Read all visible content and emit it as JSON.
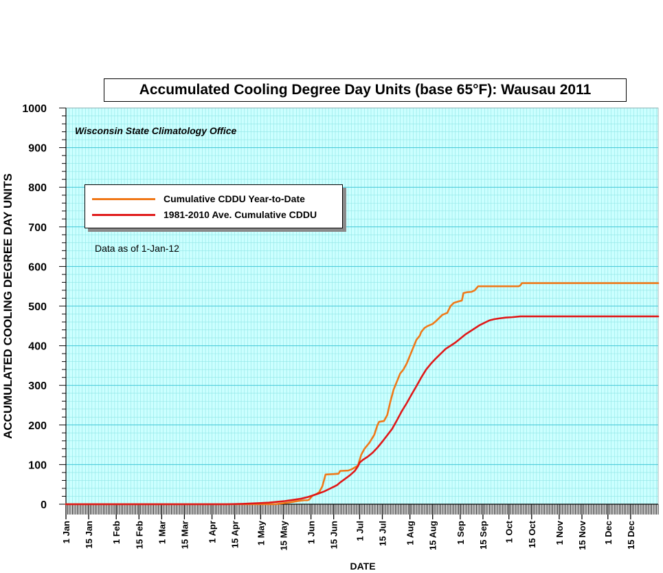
{
  "chart_data": {
    "type": "line",
    "title": "Accumulated Cooling Degree Day Units (base 65°F): Wausau 2011",
    "subtitle": "Wisconsin State Climatology Office",
    "annotation": "Data as of 1-Jan-12",
    "xlabel": "DATE",
    "ylabel": "ACCUMULATED COOLING DEGREE DAY UNITS",
    "ylim": [
      0,
      1000
    ],
    "xlim": [
      1,
      366
    ],
    "yticks": [
      0,
      100,
      200,
      300,
      400,
      500,
      600,
      700,
      800,
      900,
      1000
    ],
    "xticks": [
      {
        "day": 1,
        "label": "1 Jan"
      },
      {
        "day": 15,
        "label": "15 Jan"
      },
      {
        "day": 32,
        "label": "1 Feb"
      },
      {
        "day": 46,
        "label": "15 Feb"
      },
      {
        "day": 60,
        "label": "1 Mar"
      },
      {
        "day": 74,
        "label": "15 Mar"
      },
      {
        "day": 91,
        "label": "1 Apr"
      },
      {
        "day": 105,
        "label": "15 Apr"
      },
      {
        "day": 121,
        "label": "1 May"
      },
      {
        "day": 135,
        "label": "15 May"
      },
      {
        "day": 152,
        "label": "1 Jun"
      },
      {
        "day": 166,
        "label": "15 Jun"
      },
      {
        "day": 182,
        "label": "1 Jul"
      },
      {
        "day": 196,
        "label": "15 Jul"
      },
      {
        "day": 213,
        "label": "1 Aug"
      },
      {
        "day": 227,
        "label": "15 Aug"
      },
      {
        "day": 244,
        "label": "1 Sep"
      },
      {
        "day": 258,
        "label": "15 Sep"
      },
      {
        "day": 274,
        "label": "1 Oct"
      },
      {
        "day": 288,
        "label": "15 Oct"
      },
      {
        "day": 305,
        "label": "1 Nov"
      },
      {
        "day": 319,
        "label": "15 Nov"
      },
      {
        "day": 335,
        "label": "1 Dec"
      },
      {
        "day": 349,
        "label": "15 Dec"
      }
    ],
    "grid": true,
    "legend_position": "top-left",
    "series": [
      {
        "name": "Cumulative CDDU Year-to-Date",
        "color": "#f07818",
        "points": [
          [
            1,
            0
          ],
          [
            130,
            0
          ],
          [
            134,
            2
          ],
          [
            138,
            4
          ],
          [
            141,
            6
          ],
          [
            144,
            8
          ],
          [
            148,
            10
          ],
          [
            150,
            10
          ],
          [
            151,
            12
          ],
          [
            153,
            22
          ],
          [
            155,
            25
          ],
          [
            157,
            30
          ],
          [
            159,
            45
          ],
          [
            160,
            60
          ],
          [
            161,
            75
          ],
          [
            166,
            76
          ],
          [
            169,
            77
          ],
          [
            170,
            84
          ],
          [
            175,
            85
          ],
          [
            177,
            88
          ],
          [
            180,
            95
          ],
          [
            181,
            98
          ],
          [
            183,
            125
          ],
          [
            185,
            140
          ],
          [
            188,
            155
          ],
          [
            191,
            175
          ],
          [
            193,
            200
          ],
          [
            194,
            208
          ],
          [
            197,
            210
          ],
          [
            199,
            225
          ],
          [
            201,
            260
          ],
          [
            202,
            275
          ],
          [
            203,
            290
          ],
          [
            205,
            310
          ],
          [
            207,
            330
          ],
          [
            209,
            340
          ],
          [
            211,
            355
          ],
          [
            214,
            385
          ],
          [
            217,
            415
          ],
          [
            219,
            425
          ],
          [
            220,
            435
          ],
          [
            222,
            445
          ],
          [
            224,
            450
          ],
          [
            227,
            455
          ],
          [
            229,
            462
          ],
          [
            231,
            470
          ],
          [
            233,
            478
          ],
          [
            236,
            483
          ],
          [
            238,
            500
          ],
          [
            240,
            508
          ],
          [
            243,
            512
          ],
          [
            245,
            514
          ],
          [
            246,
            533
          ],
          [
            248,
            535
          ],
          [
            251,
            536
          ],
          [
            253,
            540
          ],
          [
            255,
            550
          ],
          [
            265,
            550
          ],
          [
            280,
            550
          ],
          [
            281,
            552
          ],
          [
            282,
            558
          ],
          [
            300,
            558
          ],
          [
            366,
            558
          ]
        ]
      },
      {
        "name": "1981-2010 Ave. Cumulative CDDU",
        "color": "#e01818",
        "points": [
          [
            1,
            0
          ],
          [
            100,
            0
          ],
          [
            110,
            1
          ],
          [
            116,
            2
          ],
          [
            121,
            3
          ],
          [
            126,
            4
          ],
          [
            131,
            6
          ],
          [
            136,
            8
          ],
          [
            141,
            11
          ],
          [
            146,
            14
          ],
          [
            150,
            18
          ],
          [
            153,
            22
          ],
          [
            156,
            26
          ],
          [
            160,
            32
          ],
          [
            163,
            38
          ],
          [
            166,
            44
          ],
          [
            168,
            48
          ],
          [
            170,
            55
          ],
          [
            173,
            64
          ],
          [
            176,
            73
          ],
          [
            179,
            84
          ],
          [
            181,
            96
          ],
          [
            182,
            105
          ],
          [
            184,
            112
          ],
          [
            187,
            120
          ],
          [
            190,
            130
          ],
          [
            193,
            143
          ],
          [
            196,
            158
          ],
          [
            199,
            174
          ],
          [
            202,
            190
          ],
          [
            205,
            212
          ],
          [
            208,
            235
          ],
          [
            211,
            255
          ],
          [
            214,
            277
          ],
          [
            217,
            298
          ],
          [
            220,
            320
          ],
          [
            223,
            340
          ],
          [
            226,
            355
          ],
          [
            229,
            368
          ],
          [
            232,
            380
          ],
          [
            235,
            392
          ],
          [
            238,
            400
          ],
          [
            241,
            408
          ],
          [
            244,
            418
          ],
          [
            247,
            428
          ],
          [
            250,
            436
          ],
          [
            253,
            444
          ],
          [
            256,
            452
          ],
          [
            259,
            458
          ],
          [
            262,
            464
          ],
          [
            265,
            467
          ],
          [
            268,
            469
          ],
          [
            272,
            471
          ],
          [
            276,
            472
          ],
          [
            281,
            474
          ],
          [
            290,
            474
          ],
          [
            366,
            474
          ]
        ]
      }
    ]
  }
}
